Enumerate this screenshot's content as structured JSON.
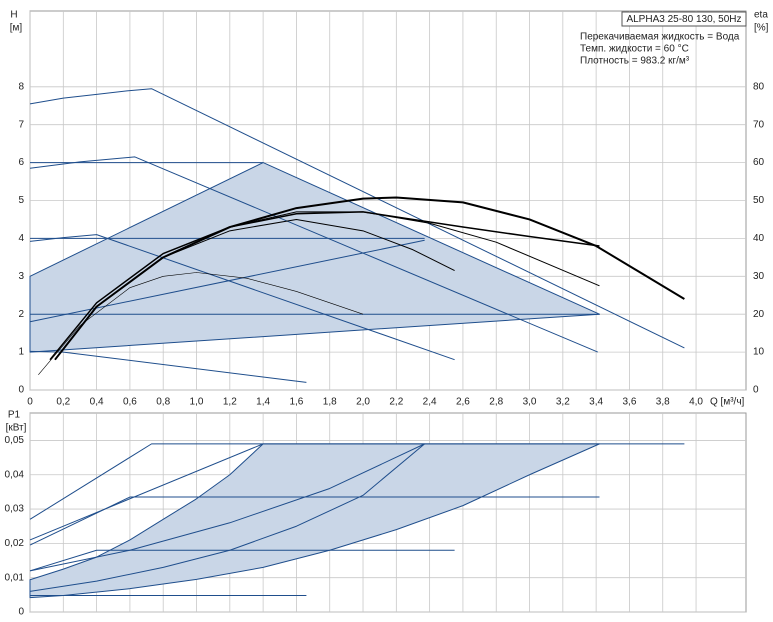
{
  "chart_data": [
    {
      "type": "line",
      "box_title": "ALPHA3 25-80 130, 50Hz",
      "annotations": [
        "Перекачиваемая жидкость = Вода",
        "Темп. жидкости = 60 °C",
        "Плотность = 983.2 кг/м³"
      ],
      "y_label": "H",
      "y_unit": "[м]",
      "y2_label": "eta",
      "y2_unit": "[%]",
      "x_label": "Q [м³/ч]",
      "xlim": [
        0,
        4.3
      ],
      "ylim": [
        0,
        10
      ],
      "y2lim": [
        0,
        100
      ],
      "grid": true,
      "xticks": [
        0,
        {
          "value": 0.2,
          "label": "0,2"
        },
        {
          "value": 0.4,
          "label": "0,4"
        },
        {
          "value": 0.6,
          "label": "0,6"
        },
        {
          "value": 0.8,
          "label": "0,8"
        },
        {
          "value": 1.0,
          "label": "1,0"
        },
        {
          "value": 1.2,
          "label": "1,2"
        },
        {
          "value": 1.4,
          "label": "1,4"
        },
        {
          "value": 1.6,
          "label": "1,6"
        },
        {
          "value": 1.8,
          "label": "1,8"
        },
        {
          "value": 2.0,
          "label": "2,0"
        },
        {
          "value": 2.2,
          "label": "2,2"
        },
        {
          "value": 2.4,
          "label": "2,4"
        },
        {
          "value": 2.6,
          "label": "2,6"
        },
        {
          "value": 2.8,
          "label": "2,8"
        },
        {
          "value": 3.0,
          "label": "3,0"
        },
        {
          "value": 3.2,
          "label": "3,2"
        },
        {
          "value": 3.4,
          "label": "3,4"
        },
        {
          "value": 3.6,
          "label": "3,6"
        },
        {
          "value": 3.8,
          "label": "3,8"
        },
        {
          "value": 4.0,
          "label": "4,0"
        }
      ],
      "yticks": [
        0,
        1,
        2,
        3,
        4,
        5,
        6,
        7,
        8
      ],
      "y2ticks": [
        0,
        10,
        20,
        30,
        40,
        50,
        60,
        70,
        80
      ],
      "series": [
        {
          "color": "#1f4e8c",
          "fill": "#c9d6e7",
          "x": [
            0,
            0,
            1.4,
            3.42
          ],
          "values": [
            1.0,
            3.0,
            6.0,
            2.0
          ]
        },
        {
          "color": "#1f4e8c",
          "x": [
            0,
            0.2,
            0.4,
            0.6,
            0.73,
            3.93
          ],
          "values": [
            7.55,
            7.7,
            7.8,
            7.9,
            7.95,
            1.11
          ]
        },
        {
          "color": "#1f4e8c",
          "x": [
            0,
            0.3,
            0.63,
            3.41
          ],
          "values": [
            5.85,
            6.02,
            6.15,
            1.0
          ]
        },
        {
          "color": "#1f4e8c",
          "x": [
            0,
            0.2,
            0.4,
            2.55
          ],
          "values": [
            3.92,
            4.02,
            4.1,
            0.8
          ]
        },
        {
          "color": "#1f4e8c",
          "x": [
            0,
            0.2,
            1.66
          ],
          "values": [
            1.02,
            1.0,
            0.2
          ]
        },
        {
          "color": "#1f4e8c",
          "x": [
            0,
            1.4
          ],
          "values": [
            6,
            6
          ]
        },
        {
          "color": "#1f4e8c",
          "x": [
            0,
            2.37
          ],
          "values": [
            4,
            4
          ]
        },
        {
          "color": "#1f4e8c",
          "x": [
            0,
            3.42
          ],
          "values": [
            2,
            2
          ]
        },
        {
          "color": "#1f4e8c",
          "x": [
            0,
            2.37
          ],
          "values": [
            1.8,
            3.95
          ]
        },
        {
          "color": "#000000",
          "axis": "y2",
          "width": 2,
          "x": [
            0.15,
            0.4,
            0.8,
            1.2,
            1.6,
            2.0,
            2.2,
            2.6,
            3.0,
            3.4,
            3.93
          ],
          "values": [
            8,
            22,
            35,
            43,
            48,
            50.5,
            50.8,
            49.5,
            45,
            38,
            24
          ]
        },
        {
          "color": "#000000",
          "axis": "y2",
          "width": 1.5,
          "x": [
            0.12,
            0.4,
            0.8,
            1.2,
            1.6,
            2.0,
            2.6,
            3.0,
            3.42
          ],
          "values": [
            8,
            23,
            36,
            43,
            46.5,
            47,
            43,
            40.5,
            38
          ]
        },
        {
          "color": "#000000",
          "axis": "y2",
          "width": 1,
          "x": [
            0.15,
            0.4,
            0.8,
            1.2,
            1.6,
            2.0,
            2.4,
            2.8,
            3.42
          ],
          "values": [
            8,
            22,
            35,
            43,
            47,
            47,
            44,
            39,
            27.5
          ]
        },
        {
          "color": "#000000",
          "axis": "y2",
          "width": 1,
          "x": [
            0.15,
            0.4,
            0.8,
            1.2,
            1.6,
            2.0,
            2.3,
            2.55
          ],
          "values": [
            8,
            22,
            35,
            42,
            45,
            42,
            37,
            31.5
          ]
        },
        {
          "color": "#000000",
          "axis": "y2",
          "width": 0.6,
          "x": [
            0.05,
            0.3,
            0.6,
            0.8,
            1.0,
            1.3,
            1.6,
            1.8,
            2.0
          ],
          "values": [
            4,
            17,
            27,
            30,
            31,
            29.5,
            26,
            23,
            20
          ]
        }
      ]
    },
    {
      "type": "line",
      "y_label": "P1",
      "y_unit": "[кВт]",
      "xlim": [
        0,
        4.3
      ],
      "ylim": [
        0,
        0.058
      ],
      "grid": true,
      "yticks": [
        0,
        {
          "value": 0.01,
          "label": "0,01"
        },
        {
          "value": 0.02,
          "label": "0,02"
        },
        {
          "value": 0.03,
          "label": "0,03"
        },
        {
          "value": 0.04,
          "label": "0,04"
        },
        {
          "value": 0.05,
          "label": "0,05"
        }
      ],
      "series": [
        {
          "color": "#1f4e8c",
          "fill": "#c9d6e7",
          "x": [
            0,
            0.2,
            0.4,
            0.6,
            0.8,
            1.0,
            1.2,
            1.4,
            3.42,
            3.0,
            2.6,
            2.2,
            1.8,
            1.4,
            1.0,
            0.6,
            0.2,
            0
          ],
          "values": [
            0.0094,
            0.0125,
            0.016,
            0.021,
            0.027,
            0.033,
            0.04,
            0.049,
            0.049,
            0.04,
            0.031,
            0.024,
            0.018,
            0.013,
            0.0095,
            0.0068,
            0.0048,
            0.0042
          ]
        },
        {
          "color": "#1f4e8c",
          "x": [
            0,
            0.73,
            3.93
          ],
          "values": [
            0.027,
            0.049,
            0.049
          ]
        },
        {
          "color": "#1f4e8c",
          "x": [
            0,
            0.6,
            3.42
          ],
          "values": [
            0.0195,
            0.0335,
            0.0335
          ]
        },
        {
          "color": "#1f4e8c",
          "x": [
            0,
            1.4
          ],
          "values": [
            0.021,
            0.049
          ]
        },
        {
          "color": "#1f4e8c",
          "x": [
            0,
            0.4,
            2.55
          ],
          "values": [
            0.012,
            0.018,
            0.018
          ]
        },
        {
          "color": "#1f4e8c",
          "x": [
            0,
            1.66
          ],
          "values": [
            0.0048,
            0.0048
          ]
        },
        {
          "color": "#1f4e8c",
          "x": [
            0,
            0.4,
            0.8,
            1.2,
            1.6,
            2.0,
            2.37
          ],
          "values": [
            0.006,
            0.009,
            0.013,
            0.018,
            0.025,
            0.034,
            0.049
          ]
        },
        {
          "color": "#1f4e8c",
          "x": [
            0,
            0.6,
            1.2,
            1.8,
            2.37
          ],
          "values": [
            0.012,
            0.018,
            0.026,
            0.036,
            0.049
          ]
        }
      ]
    }
  ]
}
